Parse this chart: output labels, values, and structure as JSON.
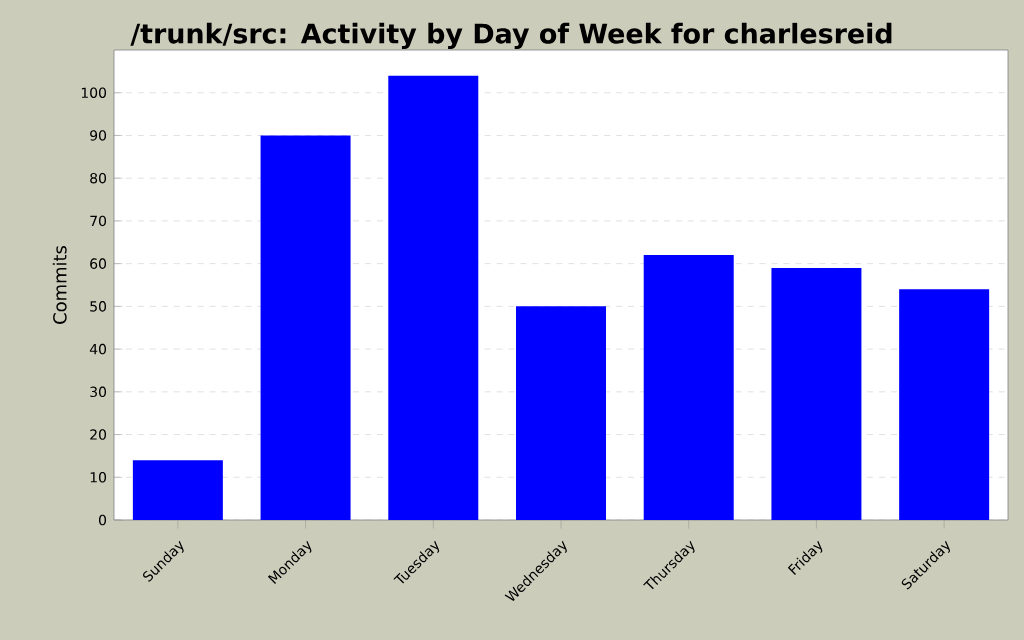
{
  "chart_data": {
    "type": "bar",
    "title": "/trunk/src: Activity by Day of Week for charlesreid",
    "ylabel": "Commits",
    "categories": [
      "Sunday",
      "Monday",
      "Tuesday",
      "Wednesday",
      "Thursday",
      "Friday",
      "Saturday"
    ],
    "values": [
      14,
      90,
      104,
      50,
      62,
      59,
      54
    ],
    "color": "#0000ff",
    "ylim": [
      0,
      110
    ],
    "yticks": [
      0,
      10,
      20,
      30,
      40,
      50,
      60,
      70,
      80,
      90,
      100
    ],
    "grid": "y"
  }
}
